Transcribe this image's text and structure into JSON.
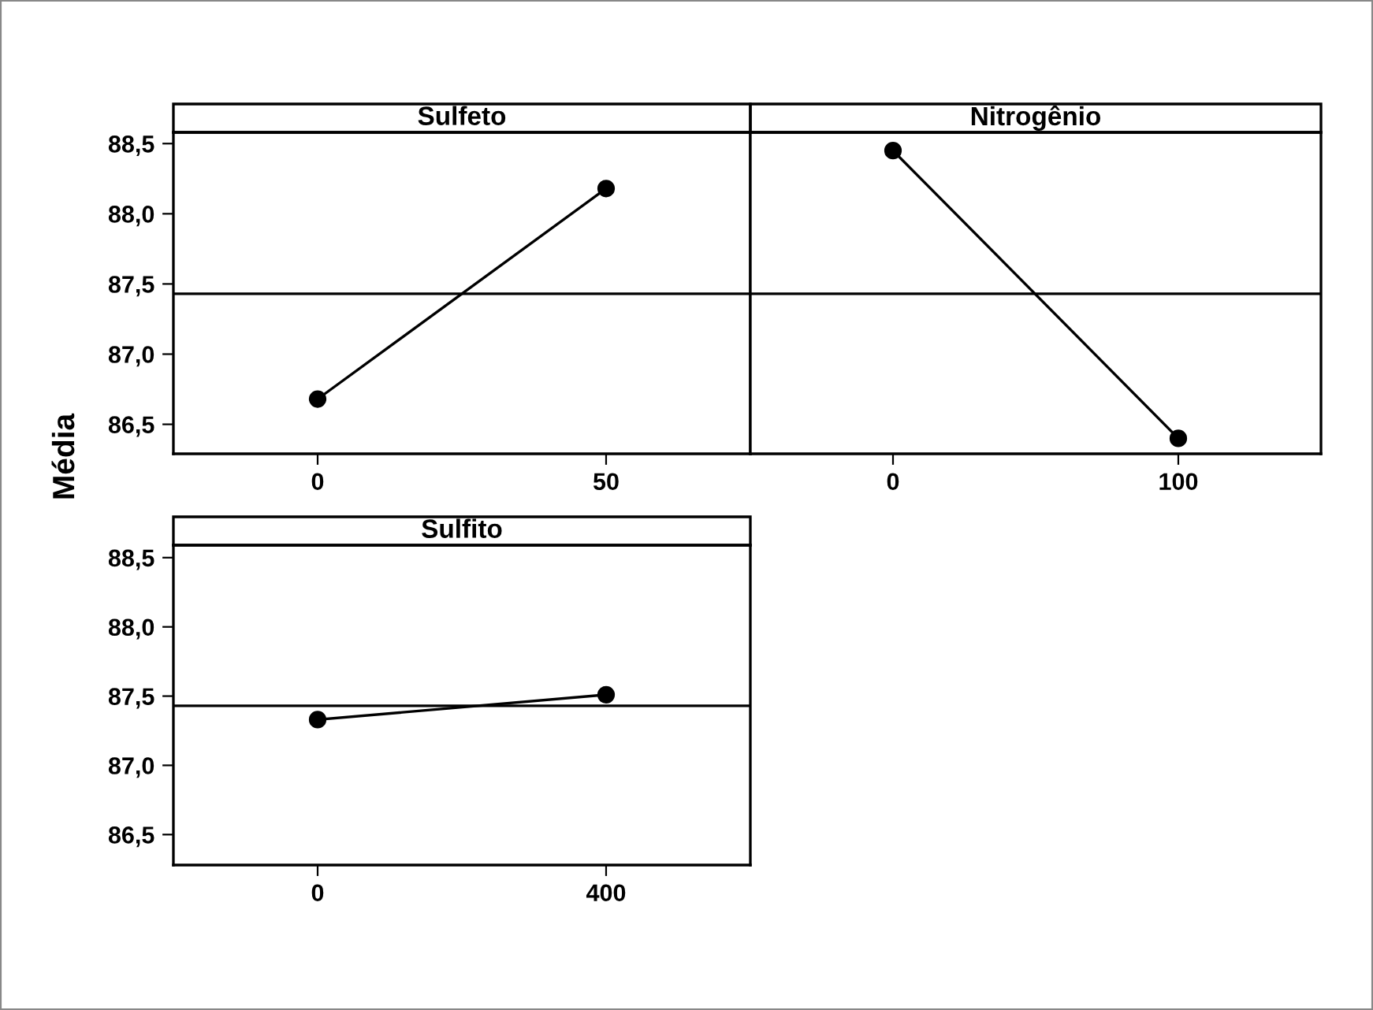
{
  "chart_data": [
    {
      "type": "line",
      "title": "Sulfeto",
      "ylabel": "Média",
      "x": [
        0,
        50
      ],
      "values": [
        86.68,
        88.18
      ],
      "color": "#000000",
      "marker": "circle",
      "line_style": "solid",
      "grid": false,
      "xlim": [
        -25,
        75
      ],
      "xticks": [
        0,
        50
      ],
      "ylim": [
        86.29,
        88.58
      ],
      "yticks": [
        {
          "value": 86.5,
          "label": "86,5"
        },
        {
          "value": 87.0,
          "label": "87,0"
        },
        {
          "value": 87.5,
          "label": "87,5"
        },
        {
          "value": 88.0,
          "label": "88,0"
        },
        {
          "value": 88.5,
          "label": "88,5"
        }
      ],
      "ref_lines": [
        {
          "axis": "y",
          "value": 87.43,
          "color": "#000000"
        }
      ]
    },
    {
      "type": "line",
      "title": "Nitrogênio",
      "x": [
        0,
        100
      ],
      "values": [
        88.45,
        86.4
      ],
      "color": "#000000",
      "marker": "circle",
      "line_style": "solid",
      "grid": false,
      "xlim": [
        -50,
        150
      ],
      "xticks": [
        0,
        100
      ],
      "ylim": [
        86.29,
        88.58
      ],
      "tick_labels": "x",
      "ref_lines": [
        {
          "axis": "y",
          "value": 87.43,
          "color": "#000000"
        }
      ]
    },
    {
      "type": "line",
      "title": "Sulfito",
      "x": [
        0,
        400
      ],
      "values": [
        87.33,
        87.51
      ],
      "color": "#000000",
      "marker": "circle",
      "line_style": "solid",
      "grid": false,
      "xlim": [
        -200,
        600
      ],
      "xticks": [
        0,
        400
      ],
      "ylim": [
        86.28,
        88.59
      ],
      "yticks": [
        {
          "value": 86.5,
          "label": "86,5"
        },
        {
          "value": 87.0,
          "label": "87,0"
        },
        {
          "value": 87.5,
          "label": "87,5"
        },
        {
          "value": 88.0,
          "label": "88,0"
        },
        {
          "value": 88.5,
          "label": "88,5"
        }
      ],
      "ref_lines": [
        {
          "axis": "y",
          "value": 87.43,
          "color": "#000000"
        }
      ]
    }
  ]
}
